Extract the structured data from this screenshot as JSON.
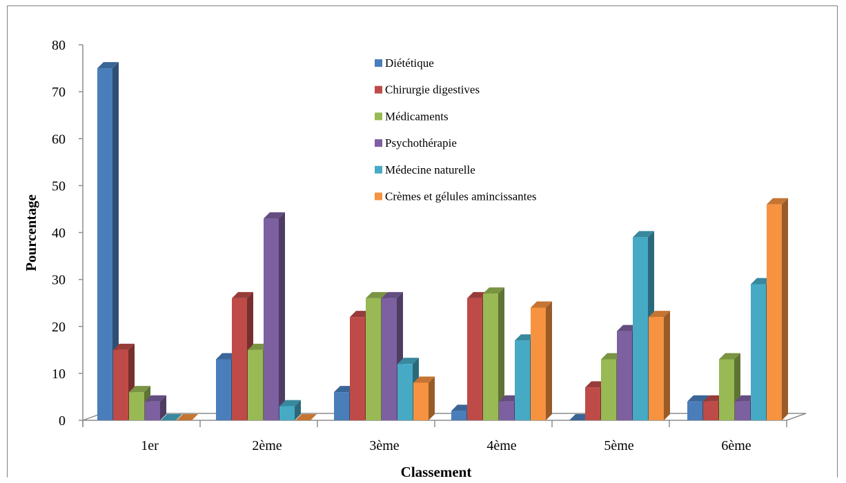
{
  "chart_data": {
    "type": "bar",
    "title": "",
    "xlabel": "Classement",
    "ylabel": "Pourcentage",
    "ylim": [
      0,
      80
    ],
    "yticks": [
      0,
      10,
      20,
      30,
      40,
      50,
      60,
      70,
      80
    ],
    "categories": [
      "1er",
      "2ème",
      "3ème",
      "4ème",
      "5ème",
      "6ème"
    ],
    "legend_position": "top-center",
    "grid": false,
    "style": "3d-column",
    "series": [
      {
        "name": "Diététique",
        "color": "#4a7ebb",
        "values": [
          75,
          13,
          6,
          2,
          0,
          4
        ]
      },
      {
        "name": "Chirurgie digestives",
        "color": "#be4b48",
        "values": [
          15,
          26,
          22,
          26,
          7,
          4
        ]
      },
      {
        "name": "Médicaments",
        "color": "#98b954",
        "values": [
          6,
          15,
          26,
          27,
          13,
          13
        ]
      },
      {
        "name": "Psychothérapie",
        "color": "#7d60a0",
        "values": [
          4,
          43,
          26,
          4,
          19,
          4
        ]
      },
      {
        "name": "Médecine naturelle",
        "color": "#46aac5",
        "values": [
          0,
          3,
          12,
          17,
          39,
          29
        ]
      },
      {
        "name": "Crèmes et gélules amincissantes",
        "color": "#f69240",
        "values": [
          0,
          0,
          8,
          24,
          22,
          46
        ]
      }
    ]
  }
}
